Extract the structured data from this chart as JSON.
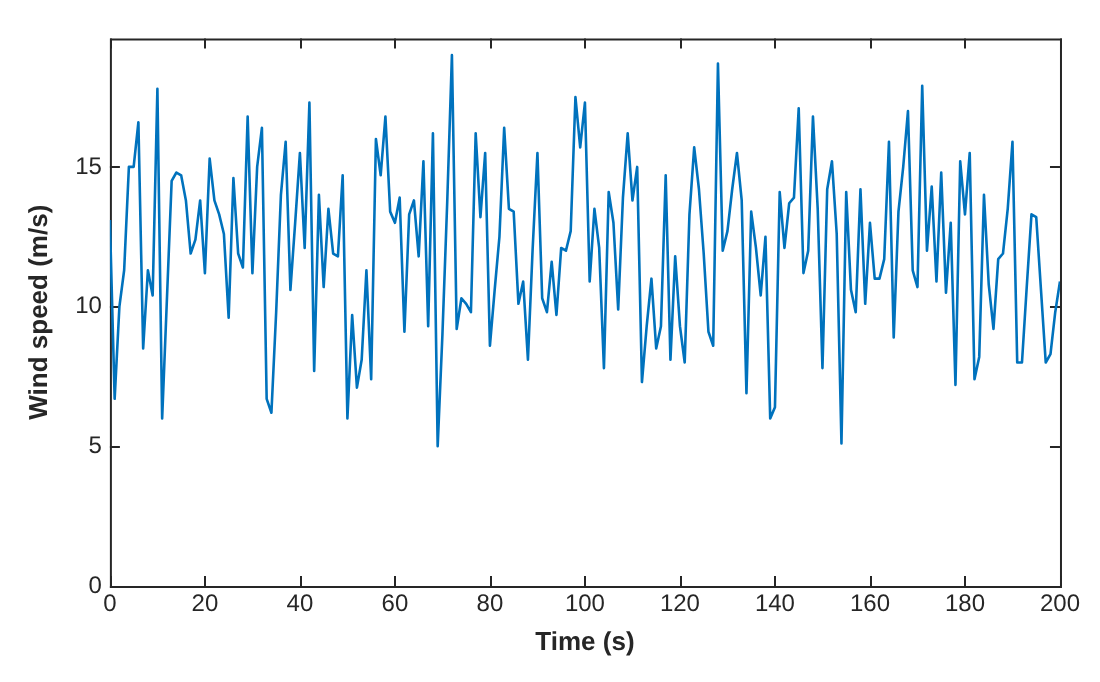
{
  "chart_data": {
    "type": "line",
    "xlabel": "Time (s)",
    "ylabel": "Wind speed (m/s)",
    "xlim": [
      0,
      200
    ],
    "xticks": [
      0,
      20,
      40,
      60,
      80,
      100,
      120,
      140,
      160,
      180,
      200
    ],
    "ylim": [
      0,
      19.6
    ],
    "yticks": [
      0,
      5,
      10,
      15
    ],
    "grid": false,
    "legend": false,
    "marker": "none",
    "line_style": "solid",
    "series": [
      {
        "color": "#0072bd",
        "x": [
          0,
          1,
          2,
          3,
          4,
          5,
          6,
          7,
          8,
          9,
          10,
          11,
          13,
          14,
          15,
          16,
          17,
          18,
          19,
          20,
          21,
          22,
          23,
          24,
          25,
          26,
          27,
          28,
          29,
          30,
          31,
          32,
          33,
          34,
          35,
          36,
          37,
          38,
          39,
          40,
          41,
          42,
          43,
          44,
          45,
          46,
          47,
          48,
          49,
          50,
          51,
          52,
          53,
          54,
          55,
          56,
          57,
          58,
          59,
          60,
          61,
          62,
          63,
          64,
          65,
          66,
          67,
          68,
          69,
          70,
          71,
          72,
          73,
          74,
          75,
          76,
          77,
          78,
          79,
          80,
          81,
          82,
          83,
          84,
          85,
          86,
          87,
          88,
          89,
          90,
          91,
          92,
          93,
          94,
          95,
          96,
          97,
          98,
          99,
          100,
          101,
          102,
          103,
          104,
          105,
          106,
          107,
          108,
          109,
          110,
          111,
          112,
          113,
          114,
          115,
          116,
          117,
          118,
          119,
          120,
          121,
          122,
          123,
          124,
          125,
          126,
          127,
          128,
          129,
          130,
          131,
          132,
          133,
          134,
          135,
          136,
          137,
          138,
          139,
          140,
          141,
          142,
          143,
          144,
          145,
          146,
          147,
          148,
          149,
          150,
          151,
          152,
          153,
          154,
          155,
          156,
          157,
          158,
          159,
          160,
          161,
          162,
          163,
          164,
          165,
          166,
          167,
          168,
          169,
          170,
          171,
          172,
          173,
          174,
          175,
          176,
          177,
          178,
          179,
          180,
          181,
          182,
          183,
          184,
          185,
          186,
          187,
          188,
          189,
          190,
          191,
          192,
          193,
          194,
          195,
          196,
          197,
          198,
          199,
          200
        ],
        "values": [
          13.1,
          6.7,
          10.0,
          11.3,
          15.0,
          15.0,
          16.6,
          8.5,
          11.3,
          10.4,
          17.8,
          6.0,
          14.5,
          14.8,
          14.7,
          13.8,
          11.9,
          12.4,
          13.8,
          11.2,
          15.3,
          13.8,
          13.3,
          12.6,
          9.6,
          14.6,
          11.9,
          11.4,
          16.8,
          11.2,
          15.0,
          16.4,
          6.7,
          6.2,
          9.8,
          14.0,
          15.9,
          10.6,
          13.0,
          15.5,
          12.1,
          17.3,
          7.7,
          14.0,
          10.7,
          13.5,
          11.9,
          11.8,
          14.7,
          6.0,
          9.7,
          7.1,
          8.1,
          11.3,
          7.4,
          16.0,
          14.7,
          16.8,
          13.4,
          13.0,
          13.9,
          9.1,
          13.3,
          13.8,
          11.8,
          15.2,
          9.3,
          16.2,
          5.0,
          9.0,
          13.7,
          19.0,
          9.2,
          10.3,
          10.1,
          9.8,
          16.2,
          13.2,
          15.5,
          8.6,
          10.6,
          12.5,
          16.4,
          13.5,
          13.4,
          10.1,
          10.9,
          8.1,
          12.1,
          15.5,
          10.3,
          9.8,
          11.6,
          9.7,
          12.1,
          12.0,
          12.7,
          17.5,
          15.7,
          17.3,
          10.9,
          13.5,
          12.1,
          7.8,
          14.1,
          13.0,
          9.9,
          13.9,
          16.2,
          13.8,
          15.0,
          7.3,
          9.3,
          11.0,
          8.5,
          9.3,
          14.7,
          8.1,
          11.8,
          9.3,
          8.0,
          13.3,
          15.7,
          14.2,
          11.9,
          9.1,
          8.6,
          18.7,
          12.0,
          12.7,
          14.2,
          15.5,
          13.8,
          6.9,
          13.4,
          12.1,
          10.4,
          12.5,
          6.0,
          6.4,
          14.1,
          12.1,
          13.7,
          13.9,
          17.1,
          11.2,
          12.0,
          16.8,
          13.5,
          7.8,
          14.2,
          15.2,
          12.6,
          5.1,
          14.1,
          10.6,
          9.8,
          14.2,
          10.1,
          13.0,
          11.0,
          11.0,
          11.7,
          15.9,
          8.9,
          13.4,
          15.0,
          17.0,
          11.3,
          10.7,
          17.9,
          12.0,
          14.3,
          10.9,
          14.8,
          10.5,
          13.0,
          7.2,
          15.2,
          13.3,
          15.5,
          7.4,
          8.2,
          14.0,
          10.8,
          9.2,
          11.7,
          11.9,
          13.5,
          15.9,
          8.0,
          8.0,
          10.7,
          13.3,
          13.2,
          10.6,
          8.0,
          8.3,
          9.8,
          10.9
        ]
      }
    ]
  }
}
